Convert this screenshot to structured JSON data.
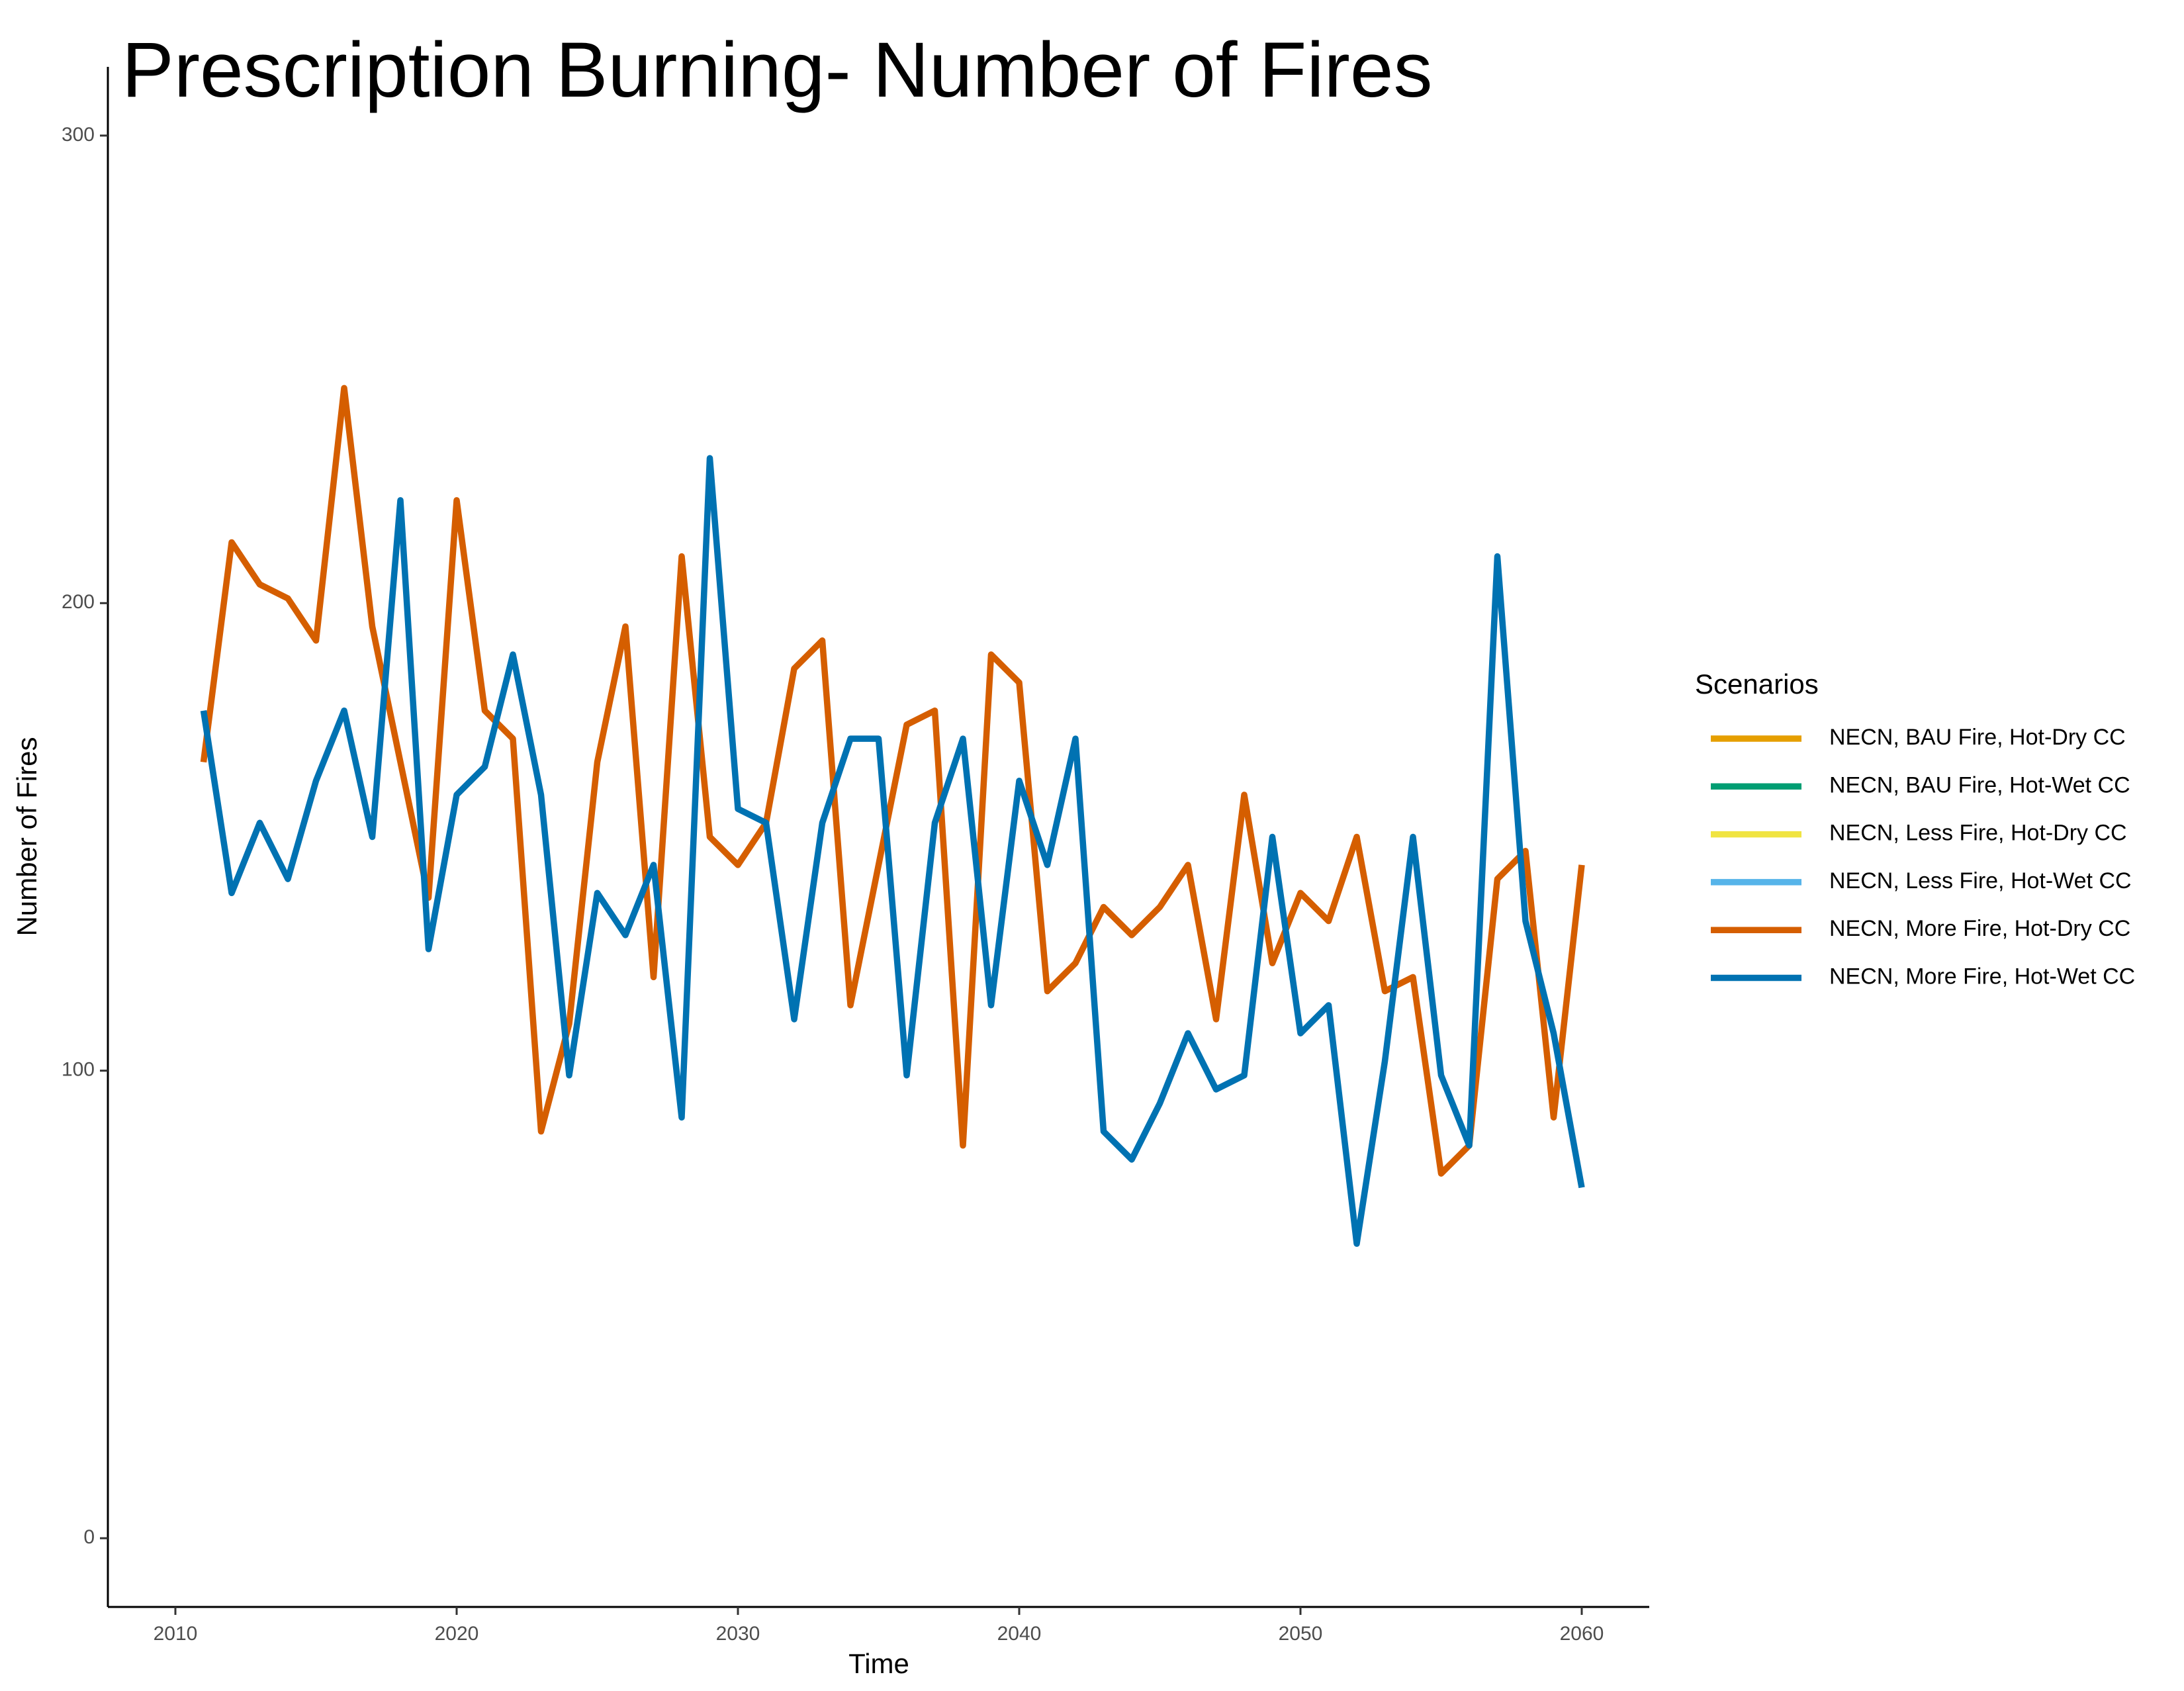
{
  "chart_data": {
    "type": "line",
    "title": "Prescription Burning- Number of Fires",
    "x_label": "Time",
    "y_label": "Number of Fires",
    "legend_title": "Scenarios",
    "legend": "right",
    "grid": false,
    "x": [
      2011,
      2012,
      2013,
      2014,
      2015,
      2016,
      2017,
      2018,
      2019,
      2020,
      2021,
      2022,
      2023,
      2024,
      2025,
      2026,
      2027,
      2028,
      2029,
      2030,
      2031,
      2032,
      2033,
      2034,
      2035,
      2036,
      2037,
      2038,
      2039,
      2040,
      2041,
      2042,
      2043,
      2044,
      2045,
      2046,
      2047,
      2048,
      2049,
      2050,
      2051,
      2052,
      2053,
      2054,
      2055,
      2056,
      2057,
      2058,
      2059,
      2060
    ],
    "series": [
      {
        "name": "NECN, BAU Fire, Hot-Dry CC",
        "color": "#E69F00"
      },
      {
        "name": "NECN, BAU Fire, Hot-Wet CC",
        "color": "#009E73"
      },
      {
        "name": "NECN, Less Fire, Hot-Dry CC",
        "color": "#F0E442"
      },
      {
        "name": "NECN, Less Fire, Hot-Wet CC",
        "color": "#56B4E9"
      },
      {
        "name": "NECN, More Fire, Hot-Dry CC",
        "color": "#D55E00",
        "values": [
          166,
          213,
          204,
          201,
          192,
          246,
          195,
          166,
          137,
          222,
          177,
          171,
          87,
          110,
          166,
          195,
          120,
          210,
          150,
          144,
          153,
          186,
          192,
          114,
          144,
          174,
          177,
          84,
          189,
          183,
          117,
          123,
          135,
          129,
          135,
          144,
          111,
          159,
          123,
          138,
          132,
          150,
          117,
          120,
          78,
          84,
          141,
          147,
          90,
          144
        ]
      },
      {
        "name": "NECN, More Fire, Hot-Wet CC",
        "color": "#0072B2",
        "values": [
          177,
          138,
          153,
          141,
          162,
          177,
          150,
          222,
          126,
          159,
          165,
          189,
          159,
          99,
          138,
          129,
          144,
          90,
          231,
          156,
          153,
          111,
          153,
          171,
          171,
          99,
          153,
          171,
          114,
          162,
          144,
          171,
          87,
          81,
          93,
          108,
          96,
          99,
          150,
          108,
          114,
          63,
          102,
          150,
          99,
          84,
          210,
          132,
          108,
          75
        ]
      }
    ],
    "xlim": [
      2007.6,
      2062.4
    ],
    "xticks": [
      2010,
      2020,
      2030,
      2040,
      2050,
      2060
    ],
    "ylim": [
      -14.7,
      314.7
    ],
    "yticks": [
      0,
      100,
      200,
      300
    ]
  }
}
